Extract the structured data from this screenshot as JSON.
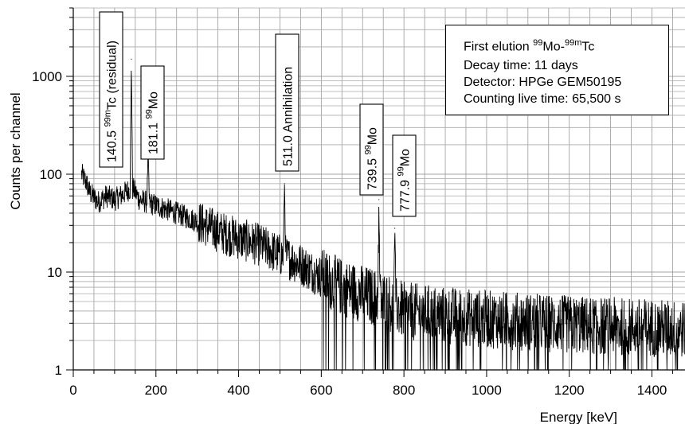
{
  "chart_data": {
    "type": "line",
    "xlabel": "Energy [keV]",
    "ylabel": "Counts per channel",
    "xlim": [
      0,
      1480
    ],
    "ylim": [
      1,
      5000
    ],
    "yscale": "log",
    "grid": true,
    "x_ticks": [
      0,
      200,
      400,
      600,
      800,
      1000,
      1200,
      1400
    ],
    "x_tick_labels": [
      "0",
      "200",
      "400",
      "600",
      "800",
      "1000",
      "1200",
      "1400"
    ],
    "y_ticks": [
      1,
      10,
      100,
      1000
    ],
    "y_tick_labels": [
      "1",
      "10",
      "100",
      "1000"
    ],
    "series": [
      {
        "color": "#000000",
        "x": [
          20,
          30,
          40,
          60,
          80,
          100,
          120,
          135,
          140.5,
          146,
          160,
          181.1,
          200,
          250,
          300,
          350,
          400,
          450,
          500,
          511,
          520,
          550,
          600,
          650,
          700,
          739.5,
          760,
          777.9,
          800,
          900,
          1000,
          1100,
          1200,
          1300,
          1400,
          1480
        ],
        "y": [
          100,
          85,
          65,
          52,
          60,
          55,
          62,
          70,
          1500,
          70,
          55,
          180,
          48,
          40,
          33,
          26,
          22,
          19,
          15,
          80,
          14,
          12,
          9,
          7,
          6,
          55,
          5,
          28,
          4,
          3.6,
          3.3,
          3.1,
          2.9,
          2.8,
          2.7,
          2.6
        ]
      }
    ],
    "annotations": [
      {
        "x": 140.5,
        "pre": "140.5 ",
        "sup": "99m",
        "post": "Tc (residual)"
      },
      {
        "x": 181.1,
        "pre": "181.1 ",
        "sup": "99",
        "post": "Mo"
      },
      {
        "x": 511.0,
        "pre": "511.0 Annihilation",
        "sup": "",
        "post": ""
      },
      {
        "x": 739.5,
        "pre": "739.5 ",
        "sup": "99",
        "post": "Mo"
      },
      {
        "x": 777.9,
        "pre": "777.9 ",
        "sup": "99",
        "post": "Mo"
      }
    ],
    "legend_box": {
      "position": "top-right",
      "line1_pre": "First elution ",
      "line1_sup1": "99",
      "line1_mid": "Mo-",
      "line1_sup2": "99m",
      "line1_post": "Tc",
      "line2": "Decay time: 11 days",
      "line3": "Detector: HPGe GEM50195",
      "line4": "Counting live time: 65,500 s"
    }
  }
}
